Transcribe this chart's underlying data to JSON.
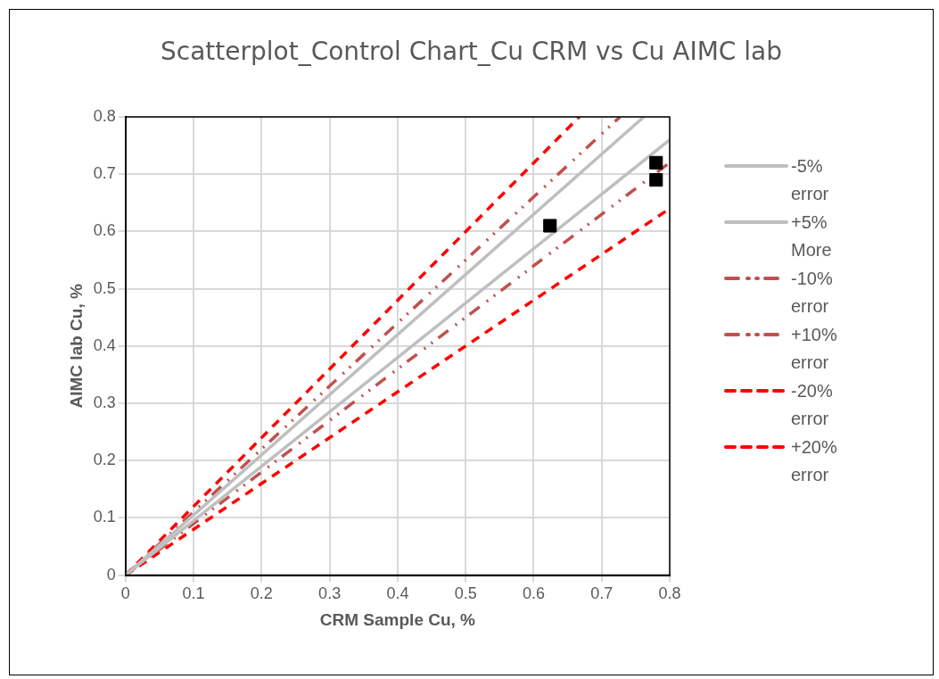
{
  "chart_data": {
    "type": "scatter",
    "title": "Scatterplot_Control Chart_Cu CRM vs Cu AIMC lab",
    "xlabel": "CRM Sample Cu, %",
    "ylabel": "AIMC lab Cu, %",
    "xlim": [
      0,
      0.8
    ],
    "xticks": [
      0,
      0.1,
      0.2,
      0.3,
      0.4,
      0.5,
      0.6,
      0.7,
      0.8
    ],
    "ylim": [
      0,
      0.8
    ],
    "yticks": [
      0,
      0.1,
      0.2,
      0.3,
      0.4,
      0.5,
      0.6,
      0.7,
      0.8
    ],
    "grid": true,
    "legend": "right",
    "marker": "square",
    "series": [
      {
        "color": "#000000",
        "x": [
          0.624,
          0.78,
          0.78
        ],
        "values": [
          0.61,
          0.72,
          0.69
        ]
      },
      {
        "type": "line",
        "name": "-5% error",
        "color": "#bfbfbf",
        "line_style": "solid",
        "marker": "none",
        "x": [
          0,
          0.8
        ],
        "values": [
          0,
          0.76
        ]
      },
      {
        "type": "line",
        "name": "+5% More",
        "color": "#bfbfbf",
        "line_style": "solid",
        "marker": "none",
        "x": [
          0,
          0.762
        ],
        "values": [
          0,
          0.8
        ]
      },
      {
        "type": "line",
        "name": "-10% error",
        "color": "#c0504d",
        "line_style": "dashdot",
        "marker": "none",
        "x": [
          0,
          0.8
        ],
        "values": [
          0,
          0.72
        ]
      },
      {
        "type": "line",
        "name": "+10% error",
        "color": "#c0504d",
        "line_style": "dashdot",
        "marker": "none",
        "x": [
          0,
          0.727
        ],
        "values": [
          0,
          0.8
        ]
      },
      {
        "type": "line",
        "name": "-20% error",
        "color": "#ff0000",
        "line_style": "dashed",
        "marker": "none",
        "x": [
          0,
          0.8
        ],
        "values": [
          0,
          0.64
        ]
      },
      {
        "type": "line",
        "name": "+20% error",
        "color": "#ff0000",
        "line_style": "dashed",
        "marker": "none",
        "x": [
          0,
          0.667
        ],
        "values": [
          0,
          0.8
        ]
      }
    ]
  }
}
